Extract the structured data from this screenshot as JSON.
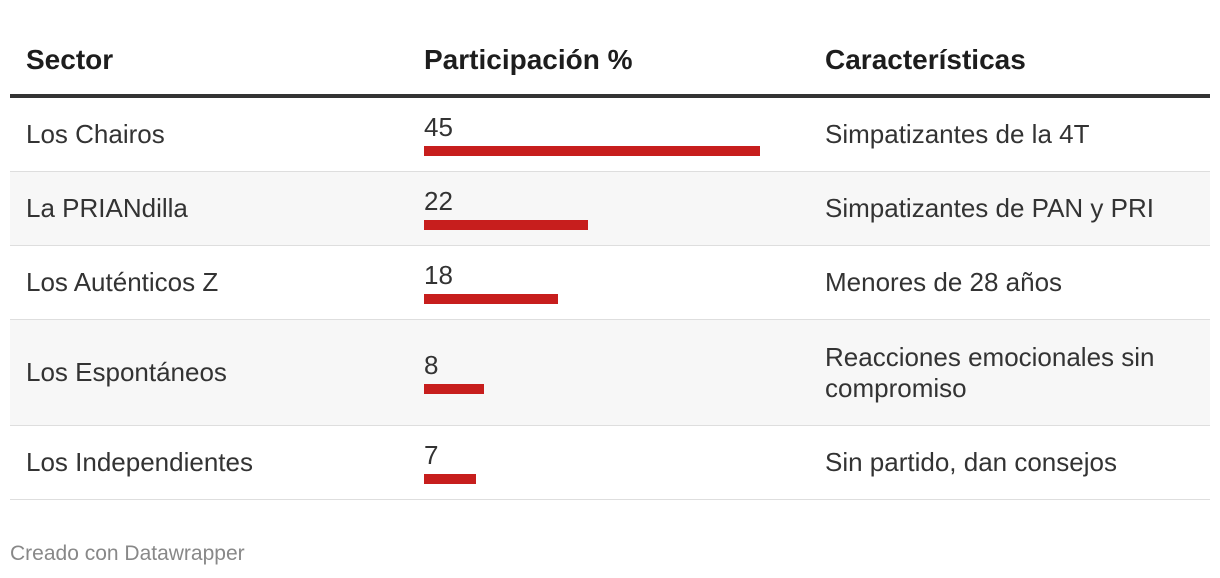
{
  "table": {
    "headers": [
      "Sector",
      "Participación %",
      "Características"
    ]
  },
  "chart_data": {
    "type": "table",
    "columns": [
      "Sector",
      "Participación %",
      "Características"
    ],
    "bar_color": "#c71e1d",
    "bar_max": 45,
    "rows": [
      {
        "sector": "Los Chairos",
        "value": 45,
        "value_label": "45",
        "description": "Simpatizantes de la 4T"
      },
      {
        "sector": "La PRIANdilla",
        "value": 22,
        "value_label": "22",
        "description": "Simpatizantes de PAN y PRI"
      },
      {
        "sector": "Los Auténticos Z",
        "value": 18,
        "value_label": "18",
        "description": "Menores de 28 años"
      },
      {
        "sector": "Los Espontáneos",
        "value": 8,
        "value_label": "8",
        "description": "Reacciones emocionales sin compromiso"
      },
      {
        "sector": "Los Independientes",
        "value": 7,
        "value_label": "7",
        "description": "Sin partido, dan consejos"
      }
    ]
  },
  "footer": {
    "credit": "Creado con Datawrapper"
  }
}
